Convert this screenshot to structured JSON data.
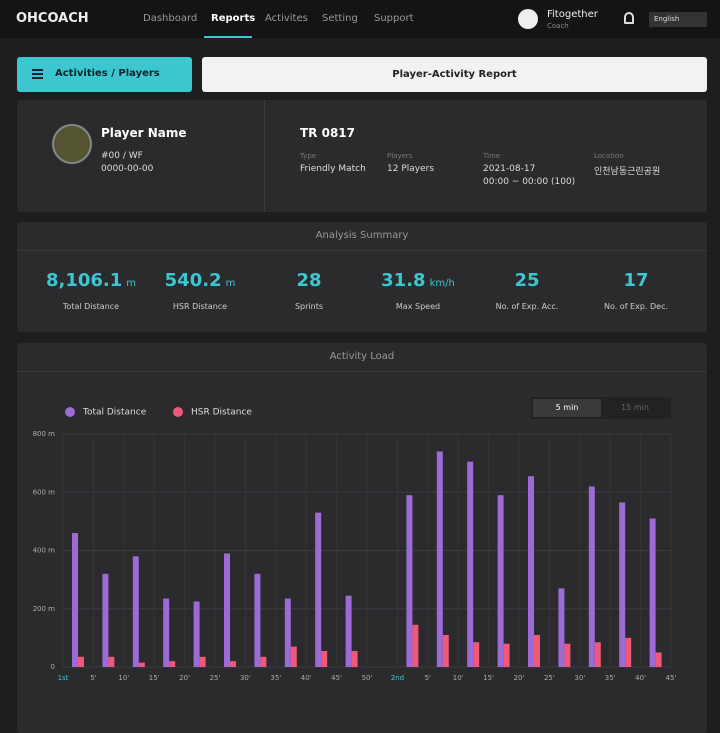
{
  "nav": {
    "brand": "OHCOACH",
    "items": [
      "Dashboard",
      "Reports",
      "Activites",
      "Setting",
      "Support"
    ],
    "user": "Fitogether",
    "role": "Coach",
    "language": "English"
  },
  "buttons": {
    "left": "Activities / Players",
    "right": "Player-Activity Report"
  },
  "player": {
    "name": "Player Name",
    "number": "#00 / WF",
    "date": "0000-00-00"
  },
  "match": {
    "title": "TR 0817",
    "fields": [
      {
        "label": "Type",
        "value": [
          "Friendly Match"
        ]
      },
      {
        "label": "Players",
        "value": [
          "12 Players"
        ]
      },
      {
        "label": "Time",
        "value": [
          "2021-08-17",
          "00:00 ~ 00:00 (100)"
        ]
      },
      {
        "label": "Location",
        "value": [
          "인천남동근린공원"
        ]
      }
    ]
  },
  "summary": {
    "title": "Analysis Summary",
    "items": [
      {
        "value": "8,106.1",
        "unit": "m",
        "label": "Total Distance"
      },
      {
        "value": "540.2",
        "unit": "m",
        "label": "HSR Distance"
      },
      {
        "value": "28",
        "label": "Sprints"
      },
      {
        "value": "31.8",
        "unit": "km/h",
        "label": "Max Speed"
      },
      {
        "value": "25",
        "label": "No. of Exp. Acc."
      },
      {
        "value": "17",
        "label": "No. of Exp. Dec."
      }
    ]
  },
  "activity_title": "Activity Load",
  "toggle": [
    "5 min",
    "15 min"
  ],
  "chart_data": {
    "type": "bar",
    "categories": [
      "1st",
      "5'",
      "10'",
      "15'",
      "20'",
      "25'",
      "30'",
      "35'",
      "40'",
      "45'",
      "50'",
      "2nd",
      "5'",
      "10'",
      "15'",
      "20'",
      "25'",
      "30'",
      "35'",
      "40'",
      "45'"
    ],
    "series": [
      {
        "name": "Total Distance",
        "color": "#9b6bd6",
        "values": [
          460,
          320,
          380,
          235,
          225,
          390,
          320,
          235,
          530,
          245,
          null,
          590,
          740,
          705,
          590,
          655,
          270,
          620,
          565,
          510,
          null
        ]
      },
      {
        "name": "HSR Distance",
        "color": "#f0587a",
        "values": [
          35,
          35,
          15,
          20,
          35,
          20,
          35,
          70,
          55,
          55,
          null,
          145,
          110,
          85,
          80,
          110,
          80,
          85,
          100,
          50,
          null
        ]
      }
    ],
    "ylim": [
      0,
      800
    ],
    "yticks": [
      0,
      {
        "value": 200,
        "label": "200 m"
      },
      {
        "value": 400,
        "label": "400 m"
      },
      {
        "value": 600,
        "label": "600 m"
      },
      {
        "value": 800,
        "label": "800 m"
      }
    ],
    "grid": true
  }
}
